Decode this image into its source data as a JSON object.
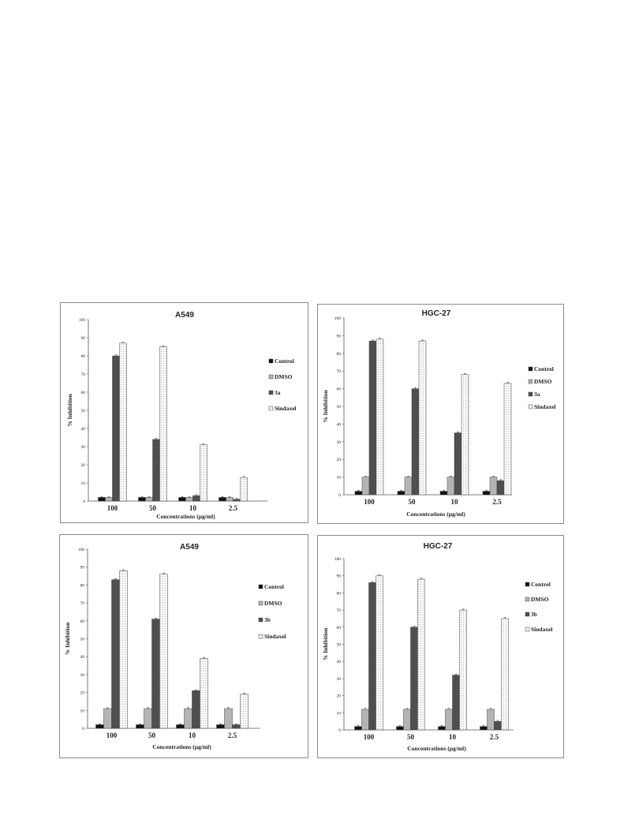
{
  "colors": {
    "control": "#111111",
    "dmso": "#b4b4b4",
    "compound": "#4d4d4d",
    "sindaxel": "#f7f7f7"
  },
  "chart_data": [
    {
      "type": "bar",
      "title": "A549",
      "xlabel": "Concentrations (µg/ml)",
      "ylabel": "% Inhibition",
      "ylim": [
        0,
        100
      ],
      "yticks": [
        "0",
        "10",
        "20",
        "30",
        "40",
        "50",
        "60",
        "70",
        "80",
        "90",
        "100"
      ],
      "categories": [
        "100",
        "50",
        "10",
        "2.5"
      ],
      "legend_position": "right",
      "series": [
        {
          "name": "Control",
          "values": [
            2,
            2,
            2,
            2
          ]
        },
        {
          "name": "DMSO",
          "values": [
            2,
            2,
            2,
            2
          ]
        },
        {
          "name": "3a",
          "values": [
            80,
            34,
            3,
            1
          ]
        },
        {
          "name": "Sindaxel",
          "values": [
            87,
            85,
            31,
            13
          ]
        }
      ]
    },
    {
      "type": "bar",
      "title": "HGC-27",
      "xlabel": "Concentrations (µg/ml)",
      "ylabel": "% Inhibition",
      "ylim": [
        0,
        100
      ],
      "yticks": [
        "0",
        "10",
        "20",
        "30",
        "40",
        "50",
        "60",
        "70",
        "80",
        "90",
        "100"
      ],
      "categories": [
        "100",
        "50",
        "10",
        "2.5"
      ],
      "legend_position": "right",
      "series": [
        {
          "name": "Control",
          "values": [
            2,
            2,
            2,
            2
          ]
        },
        {
          "name": "DMSO",
          "values": [
            10,
            10,
            10,
            10
          ]
        },
        {
          "name": "3a",
          "values": [
            87,
            60,
            35,
            8
          ]
        },
        {
          "name": "Sindaxel",
          "values": [
            88,
            87,
            68,
            63
          ]
        }
      ]
    },
    {
      "type": "bar",
      "title": "A549",
      "xlabel": "Concentrations (µg/ml)",
      "ylabel": "% Inhibition",
      "ylim": [
        0,
        100
      ],
      "yticks": [
        "0",
        "10",
        "20",
        "30",
        "40",
        "50",
        "60",
        "70",
        "80",
        "90",
        "100"
      ],
      "categories": [
        "100",
        "50",
        "10",
        "2.5"
      ],
      "legend_position": "right",
      "series": [
        {
          "name": "Control",
          "values": [
            2,
            2,
            2,
            2
          ]
        },
        {
          "name": "DMSO",
          "values": [
            11,
            11,
            11,
            11
          ]
        },
        {
          "name": "3b",
          "values": [
            83,
            61,
            21,
            2
          ]
        },
        {
          "name": "Sindaxel",
          "values": [
            88,
            86,
            39,
            19
          ]
        }
      ]
    },
    {
      "type": "bar",
      "title": "HGC-27",
      "xlabel": "Concentrations (µg/ml)",
      "ylabel": "% Inhibition",
      "ylim": [
        0,
        100
      ],
      "yticks": [
        "0",
        "10",
        "20",
        "30",
        "40",
        "50",
        "60",
        "70",
        "80",
        "90",
        "100"
      ],
      "categories": [
        "100",
        "50",
        "10",
        "2.5"
      ],
      "legend_position": "right",
      "series": [
        {
          "name": "Control",
          "values": [
            2,
            2,
            2,
            2
          ]
        },
        {
          "name": "DMSO",
          "values": [
            12,
            12,
            12,
            12
          ]
        },
        {
          "name": "3b",
          "values": [
            86,
            60,
            32,
            5
          ]
        },
        {
          "name": "Sindaxel",
          "values": [
            90,
            88,
            70,
            65
          ]
        }
      ]
    }
  ]
}
